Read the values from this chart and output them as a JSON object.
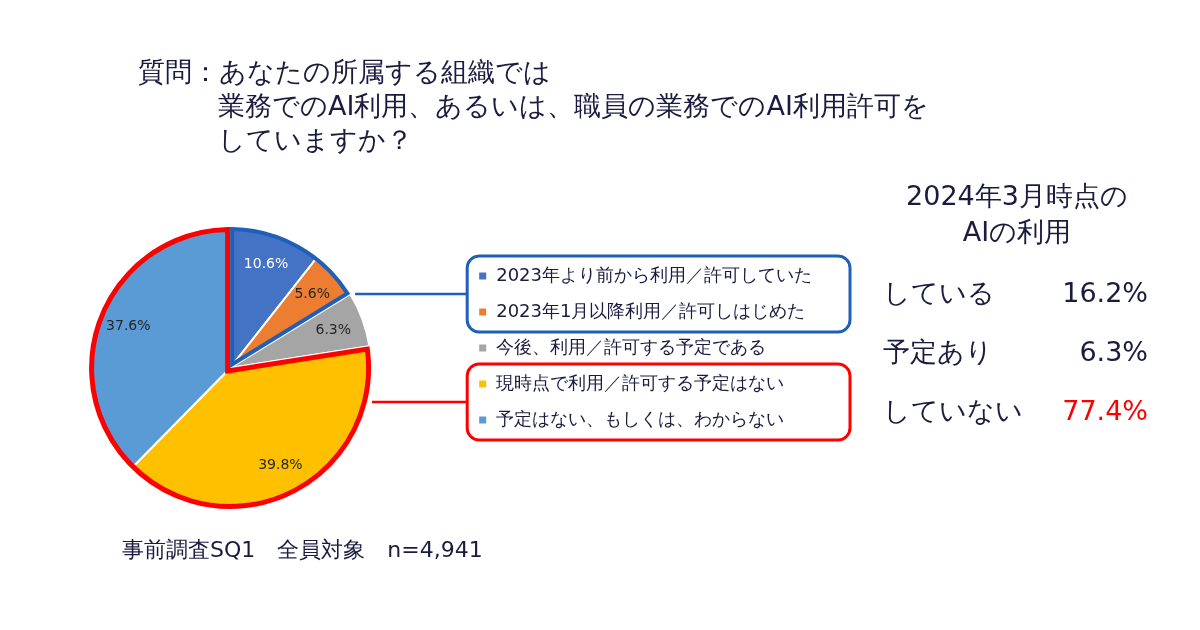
{
  "chart_data": [
    {
      "type": "pie",
      "title": "質問：あなたの所属する組織では業務でのAI利用、あるいは、職員の業務でのAI利用許可をしていますか？",
      "categories": [
        "2023年より前から利用／許可していた",
        "2023年1月以降利用／許可しはじめた",
        "今後、利用／許可する予定である",
        "現時点で利用／許可する予定はない",
        "予定はない、もしくは、わからない"
      ],
      "values": [
        10.6,
        5.6,
        6.3,
        39.8,
        37.6
      ],
      "value_labels": [
        "10.6%",
        "5.6%",
        "6.3%",
        "39.8%",
        "37.6%"
      ],
      "colors": [
        "#4472c4",
        "#ed7d31",
        "#a5a5a5",
        "#ffc000",
        "#5b9bd5"
      ],
      "legend": "right",
      "annotations": [
        "事前調査SQ1　全員対象　n=4,941"
      ]
    },
    {
      "type": "other",
      "title": "2024年3月時点の\nAIの利用",
      "annotations": [
        "している",
        "16.2%",
        "予定あり",
        "6.3%",
        "していない",
        "77.4%"
      ]
    }
  ]
}
